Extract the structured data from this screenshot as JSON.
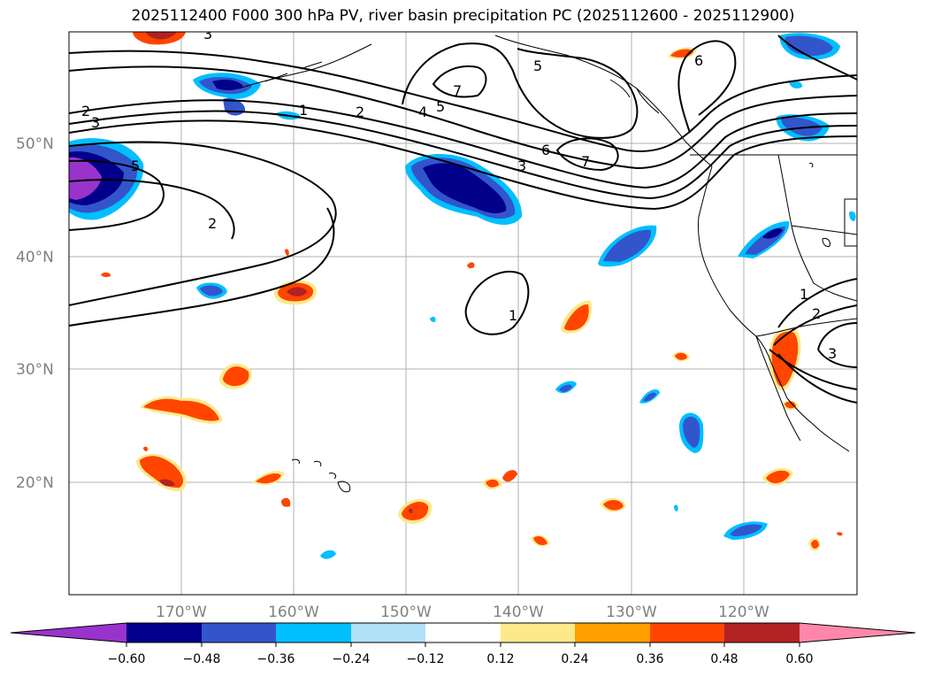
{
  "title": "2025112400 F000 300 hPa PV, river basin precipitation PC (2025112600 - 2025112900)",
  "lat_labels": [
    "50°N",
    "40°N",
    "30°N",
    "20°N"
  ],
  "lon_labels": [
    "170°W",
    "160°W",
    "150°W",
    "140°W",
    "130°W",
    "120°W"
  ],
  "colorbar": {
    "colors": [
      "#9933cc",
      "#00008b",
      "#3355cc",
      "#00bfff",
      "#aee0f8",
      "#ffffff",
      "#fde98a",
      "#ffa000",
      "#ff4500",
      "#b22222",
      "#ff88aa"
    ],
    "tick_labels": [
      "−0.60",
      "−0.48",
      "−0.36",
      "−0.24",
      "−0.12",
      "0.12",
      "0.24",
      "0.36",
      "0.48",
      "0.60"
    ]
  },
  "contour_labels": [
    "3",
    "2",
    "3",
    "5",
    "2",
    "1",
    "2",
    "4",
    "5",
    "7",
    "5",
    "6",
    "6",
    "7",
    "3",
    "1",
    "1",
    "2",
    "3"
  ]
}
